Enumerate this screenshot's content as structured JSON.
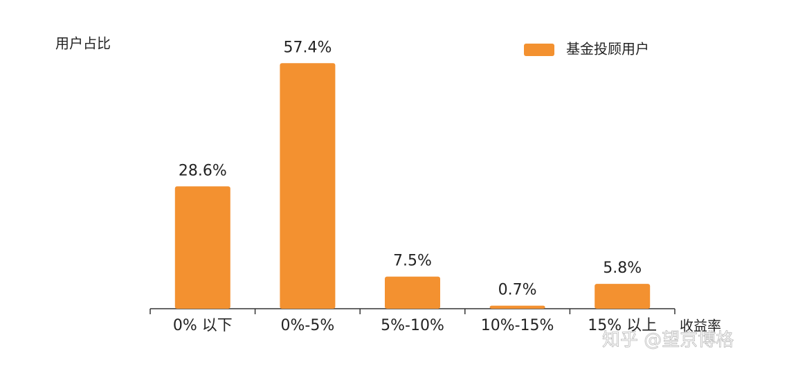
{
  "chart_data": {
    "type": "bar",
    "y_label": "用户占比",
    "x_label": "收益率",
    "categories": [
      "0% 以下",
      "0%-5%",
      "5%-10%",
      "10%-15%",
      "15% 以上"
    ],
    "series": [
      {
        "name": "基金投顾用户",
        "color": "#f39130",
        "values": [
          28.6,
          57.4,
          7.5,
          0.7,
          5.8
        ],
        "value_labels": [
          "28.6%",
          "57.4%",
          "7.5%",
          "0.7%",
          "5.8%"
        ]
      }
    ],
    "legend": "top-right",
    "watermark": "知乎 @望京博格"
  }
}
